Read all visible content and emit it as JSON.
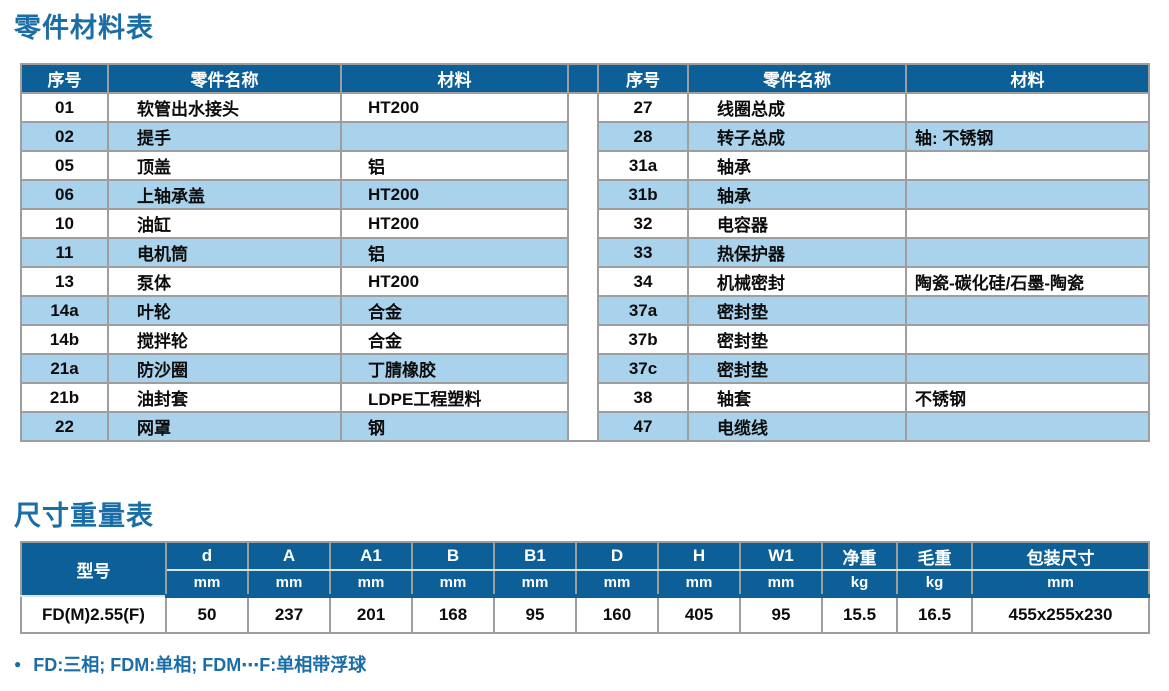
{
  "titles": {
    "parts": "零件材料表",
    "dims": "尺寸重量表"
  },
  "colors": {
    "header_blue": "#0c5f97",
    "row_blue": "#a9d2ed",
    "title_blue": "#1a6da6",
    "border_gray": "#9e9e9e",
    "text_black": "#0c0c0c"
  },
  "parts_table": {
    "headers": [
      "序号",
      "零件名称",
      "材料"
    ],
    "left_rows": [
      {
        "no": "01",
        "name": "软管出水接头",
        "material": "HT200"
      },
      {
        "no": "02",
        "name": "提手",
        "material": ""
      },
      {
        "no": "05",
        "name": "顶盖",
        "material": "铝"
      },
      {
        "no": "06",
        "name": "上轴承盖",
        "material": "HT200"
      },
      {
        "no": "10",
        "name": "油缸",
        "material": "HT200"
      },
      {
        "no": "11",
        "name": "电机筒",
        "material": "铝"
      },
      {
        "no": "13",
        "name": "泵体",
        "material": "HT200"
      },
      {
        "no": "14a",
        "name": "叶轮",
        "material": "合金"
      },
      {
        "no": "14b",
        "name": "搅拌轮",
        "material": "合金"
      },
      {
        "no": "21a",
        "name": "防沙圈",
        "material": "丁腈橡胶"
      },
      {
        "no": "21b",
        "name": "油封套",
        "material": "LDPE工程塑料"
      },
      {
        "no": "22",
        "name": "网罩",
        "material": "钢"
      }
    ],
    "right_rows": [
      {
        "no": "27",
        "name": "线圈总成",
        "material": ""
      },
      {
        "no": "28",
        "name": "转子总成",
        "material": "轴: 不锈钢"
      },
      {
        "no": "31a",
        "name": "轴承",
        "material": ""
      },
      {
        "no": "31b",
        "name": "轴承",
        "material": ""
      },
      {
        "no": "32",
        "name": "电容器",
        "material": ""
      },
      {
        "no": "33",
        "name": "热保护器",
        "material": ""
      },
      {
        "no": "34",
        "name": "机械密封",
        "material": "陶瓷-碳化硅/石墨-陶瓷"
      },
      {
        "no": "37a",
        "name": "密封垫",
        "material": ""
      },
      {
        "no": "37b",
        "name": "密封垫",
        "material": ""
      },
      {
        "no": "37c",
        "name": "密封垫",
        "material": ""
      },
      {
        "no": "38",
        "name": "轴套",
        "material": "不锈钢"
      },
      {
        "no": "47",
        "name": "电缆线",
        "material": ""
      }
    ]
  },
  "dims_table": {
    "model_header": "型号",
    "columns": [
      {
        "label": "d",
        "unit": "mm"
      },
      {
        "label": "A",
        "unit": "mm"
      },
      {
        "label": "A1",
        "unit": "mm"
      },
      {
        "label": "B",
        "unit": "mm"
      },
      {
        "label": "B1",
        "unit": "mm"
      },
      {
        "label": "D",
        "unit": "mm"
      },
      {
        "label": "H",
        "unit": "mm"
      },
      {
        "label": "W1",
        "unit": "mm"
      },
      {
        "label": "净重",
        "unit": "kg"
      },
      {
        "label": "毛重",
        "unit": "kg"
      },
      {
        "label": "包装尺寸",
        "unit": "mm"
      }
    ],
    "rows": [
      {
        "model": "FD(M)2.55(F)",
        "values": [
          "50",
          "237",
          "201",
          "168",
          "95",
          "160",
          "405",
          "95",
          "15.5",
          "16.5",
          "455x255x230"
        ]
      }
    ]
  },
  "footnote": {
    "bullet": "●",
    "text": "FD:三相; FDM:单相; FDM⋯F:单相带浮球"
  }
}
